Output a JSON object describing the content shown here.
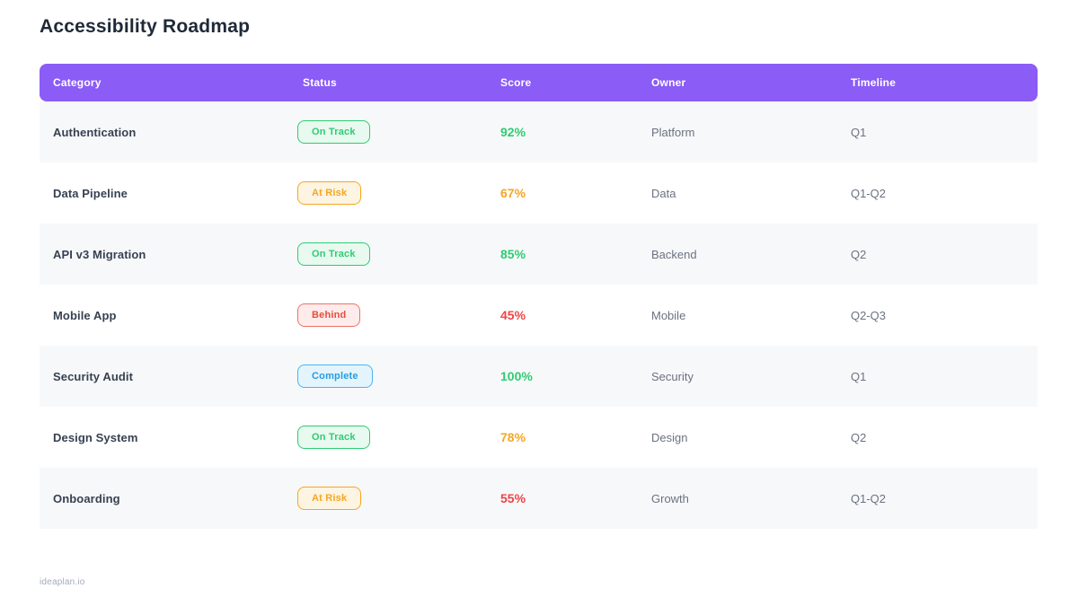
{
  "title": "Accessibility Roadmap",
  "footer": "ideaplan.io",
  "colors": {
    "header_bg": "#8b5cf6",
    "header_text": "#ffffff",
    "title_text": "#1f2937",
    "row_stripe_bg": "#f7f8fa",
    "row_plain_bg": "#ffffff",
    "category_text": "#374151",
    "muted_text": "#6b7280",
    "footer_text": "#a3abbd",
    "score_palette": {
      "green": "#2ecc71",
      "orange": "#f5a623",
      "red": "#ef4444"
    },
    "status_palette": {
      "on-track": {
        "text": "#2ecc71",
        "border": "#2ecc71",
        "bg": "#e8f9ef"
      },
      "at-risk": {
        "text": "#f5a623",
        "border": "#f5a623",
        "bg": "#fdf4e2"
      },
      "behind": {
        "text": "#e74c3c",
        "border": "#ef7168",
        "bg": "#fdeceb"
      },
      "complete": {
        "text": "#259ddf",
        "border": "#45b7ef",
        "bg": "#e4f4fd"
      }
    }
  },
  "table": {
    "columns": [
      "Category",
      "Status",
      "Score",
      "Owner",
      "Timeline"
    ],
    "rows": [
      {
        "category": "Authentication",
        "status": "On Track",
        "status_key": "on-track",
        "score": "92%",
        "score_color": "green",
        "owner": "Platform",
        "timeline": "Q1"
      },
      {
        "category": "Data Pipeline",
        "status": "At Risk",
        "status_key": "at-risk",
        "score": "67%",
        "score_color": "orange",
        "owner": "Data",
        "timeline": "Q1-Q2"
      },
      {
        "category": "API v3 Migration",
        "status": "On Track",
        "status_key": "on-track",
        "score": "85%",
        "score_color": "green",
        "owner": "Backend",
        "timeline": "Q2"
      },
      {
        "category": "Mobile App",
        "status": "Behind",
        "status_key": "behind",
        "score": "45%",
        "score_color": "red",
        "owner": "Mobile",
        "timeline": "Q2-Q3"
      },
      {
        "category": "Security Audit",
        "status": "Complete",
        "status_key": "complete",
        "score": "100%",
        "score_color": "green",
        "owner": "Security",
        "timeline": "Q1"
      },
      {
        "category": "Design System",
        "status": "On Track",
        "status_key": "on-track",
        "score": "78%",
        "score_color": "orange",
        "owner": "Design",
        "timeline": "Q2"
      },
      {
        "category": "Onboarding",
        "status": "At Risk",
        "status_key": "at-risk",
        "score": "55%",
        "score_color": "red",
        "owner": "Growth",
        "timeline": "Q1-Q2"
      }
    ]
  },
  "chart_data": {
    "type": "table",
    "title": "Accessibility Roadmap",
    "columns": [
      "Category",
      "Status",
      "Score",
      "Owner",
      "Timeline"
    ],
    "rows": [
      [
        "Authentication",
        "On Track",
        "92%",
        "Platform",
        "Q1"
      ],
      [
        "Data Pipeline",
        "At Risk",
        "67%",
        "Data",
        "Q1-Q2"
      ],
      [
        "API v3 Migration",
        "On Track",
        "85%",
        "Backend",
        "Q2"
      ],
      [
        "Mobile App",
        "Behind",
        "45%",
        "Mobile",
        "Q2-Q3"
      ],
      [
        "Security Audit",
        "Complete",
        "100%",
        "Security",
        "Q1"
      ],
      [
        "Design System",
        "On Track",
        "78%",
        "Design",
        "Q2"
      ],
      [
        "Onboarding",
        "At Risk",
        "55%",
        "Growth",
        "Q1-Q2"
      ]
    ]
  }
}
